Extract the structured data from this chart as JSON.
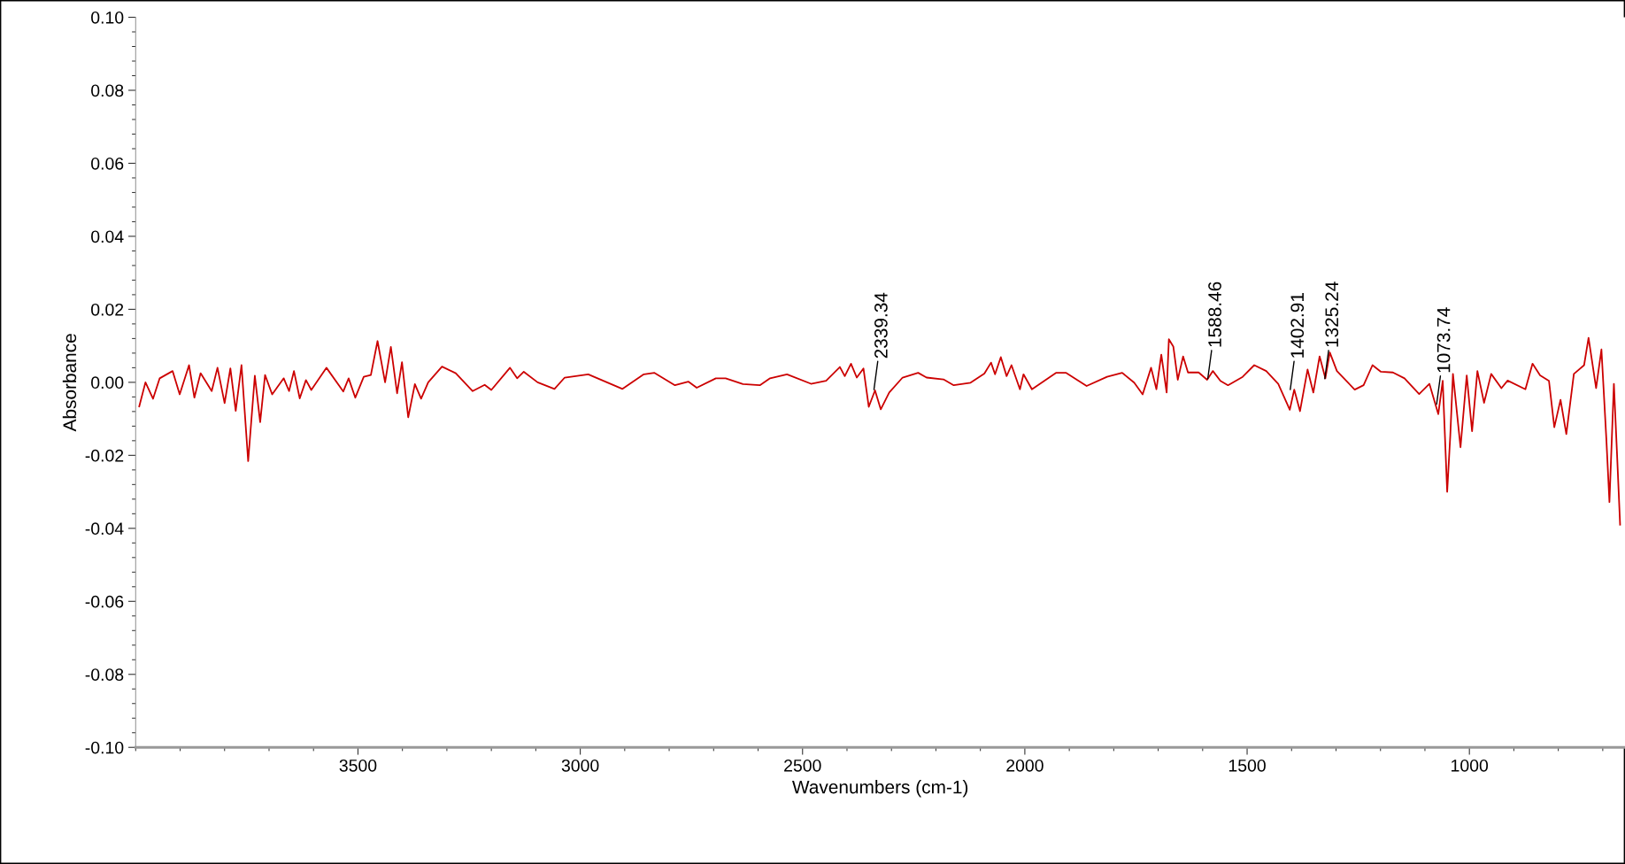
{
  "chart_data": {
    "type": "line",
    "xlabel": "Wavenumbers (cm-1)",
    "ylabel": "Absorbance",
    "xlim": [
      4000,
      650
    ],
    "ylim": [
      -0.1,
      0.1
    ],
    "xticks": [
      3500,
      3000,
      2500,
      2000,
      1500,
      1000
    ],
    "yticks": [
      {
        "value": -0.1,
        "label": "-0.10"
      },
      {
        "value": -0.08,
        "label": "-0.08"
      },
      {
        "value": -0.06,
        "label": "-0.06"
      },
      {
        "value": -0.04,
        "label": "-0.04"
      },
      {
        "value": -0.02,
        "label": "-0.02"
      },
      {
        "value": 0,
        "label": "0.00"
      },
      {
        "value": 0.02,
        "label": "0.02"
      },
      {
        "value": 0.04,
        "label": "0.04"
      },
      {
        "value": 0.06,
        "label": "0.06"
      },
      {
        "value": 0.08,
        "label": "0.08"
      },
      {
        "value": 0.1,
        "label": "0.10"
      }
    ],
    "grid": false,
    "legend": false,
    "marker": "none",
    "line_style": "solid",
    "series": [
      {
        "color": "#cc0000",
        "x": [
          3992,
          3978,
          3961,
          3946,
          3917,
          3901,
          3880,
          3868,
          3854,
          3829,
          3816,
          3800,
          3787,
          3775,
          3762,
          3747,
          3732,
          3720,
          3709,
          3693,
          3667,
          3655,
          3644,
          3631,
          3617,
          3605,
          3571,
          3533,
          3521,
          3506,
          3487,
          3471,
          3456,
          3439,
          3426,
          3412,
          3401,
          3387,
          3372,
          3358,
          3342,
          3311,
          3280,
          3242,
          3215,
          3200,
          3158,
          3142,
          3127,
          3096,
          3058,
          3035,
          2982,
          2905,
          2857,
          2833,
          2787,
          2757,
          2738,
          2695,
          2673,
          2634,
          2596,
          2573,
          2535,
          2481,
          2447,
          2416,
          2405,
          2391,
          2378,
          2363,
          2351,
          2337,
          2324,
          2305,
          2275,
          2240,
          2221,
          2183,
          2160,
          2122,
          2091,
          2076,
          2067,
          2054,
          2041,
          2030,
          2011,
          2003,
          1984,
          1930,
          1907,
          1861,
          1815,
          1781,
          1754,
          1735,
          1716,
          1704,
          1693,
          1681,
          1676,
          1666,
          1656,
          1644,
          1633,
          1609,
          1590,
          1577,
          1560,
          1543,
          1510,
          1484,
          1457,
          1430,
          1404,
          1394,
          1381,
          1364,
          1351,
          1337,
          1324,
          1314,
          1298,
          1258,
          1238,
          1218,
          1199,
          1172,
          1146,
          1113,
          1090,
          1070,
          1060,
          1050,
          1043,
          1037,
          1020,
          1006,
          994,
          982,
          967,
          951,
          928,
          914,
          874,
          858,
          841,
          821,
          809,
          795,
          782,
          765,
          742,
          732,
          715,
          703,
          692,
          685,
          675,
          668,
          661
        ],
        "values": [
          -0.0066,
          0.0,
          -0.0045,
          0.0011,
          0.0031,
          -0.0033,
          0.0047,
          -0.0042,
          0.0025,
          -0.0024,
          0.004,
          -0.0057,
          0.0038,
          -0.0078,
          0.0047,
          -0.0216,
          0.0018,
          -0.0109,
          0.002,
          -0.0033,
          0.0011,
          -0.0024,
          0.0031,
          -0.0044,
          0.0006,
          -0.0021,
          0.004,
          -0.0025,
          0.0011,
          -0.0042,
          0.0015,
          0.002,
          0.0113,
          0.0,
          0.0097,
          -0.003,
          0.0055,
          -0.0096,
          -0.0005,
          -0.0045,
          0.0,
          0.0043,
          0.0025,
          -0.0024,
          -0.0007,
          -0.0021,
          0.004,
          0.0011,
          0.0029,
          0.0,
          -0.0018,
          0.0013,
          0.0022,
          -0.0018,
          0.0022,
          0.0026,
          -0.0008,
          0.0002,
          -0.0015,
          0.0011,
          0.0011,
          -0.0005,
          -0.0008,
          0.0011,
          0.0022,
          -0.0004,
          0.0004,
          0.0042,
          0.0017,
          0.0051,
          0.0013,
          0.0038,
          -0.0067,
          -0.0022,
          -0.0074,
          -0.0028,
          0.0013,
          0.0026,
          0.0013,
          0.0008,
          -0.0008,
          -0.0001,
          0.0024,
          0.0054,
          0.0022,
          0.0069,
          0.0017,
          0.0047,
          -0.0019,
          0.0022,
          -0.0019,
          0.0026,
          0.0026,
          -0.001,
          0.0015,
          0.0026,
          -0.0001,
          -0.0033,
          0.004,
          -0.0019,
          0.0076,
          -0.0028,
          0.0118,
          0.0098,
          0.0007,
          0.0071,
          0.0027,
          0.0027,
          0.0007,
          0.0031,
          0.0004,
          -0.0008,
          0.0015,
          0.0047,
          0.0031,
          -0.0004,
          -0.0075,
          -0.002,
          -0.0079,
          0.0035,
          -0.0028,
          0.0071,
          0.0011,
          0.0082,
          0.0031,
          -0.002,
          -0.0008,
          0.0047,
          0.0029,
          0.0027,
          0.0011,
          -0.0032,
          -0.0004,
          -0.0087,
          0.0004,
          -0.03,
          -0.0146,
          0.0023,
          -0.0178,
          0.0019,
          -0.0134,
          0.0031,
          -0.0056,
          0.0023,
          -0.0016,
          0.0005,
          -0.0019,
          0.0051,
          0.0019,
          0.0004,
          -0.0123,
          -0.0048,
          -0.0142,
          0.0023,
          0.0047,
          0.0122,
          -0.0016,
          0.009,
          -0.0154,
          -0.0328,
          -0.0004,
          -0.0194,
          -0.039
        ]
      }
    ],
    "annotations": [
      {
        "text": "2339.34",
        "x": 2339.34,
        "y": -0.002
      },
      {
        "text": "1588.46",
        "x": 1588.46,
        "y": 0.001
      },
      {
        "text": "1402.91",
        "x": 1402.91,
        "y": -0.002
      },
      {
        "text": "1325.24",
        "x": 1325.24,
        "y": 0.001
      },
      {
        "text": "1073.74",
        "x": 1073.74,
        "y": -0.006
      }
    ]
  }
}
